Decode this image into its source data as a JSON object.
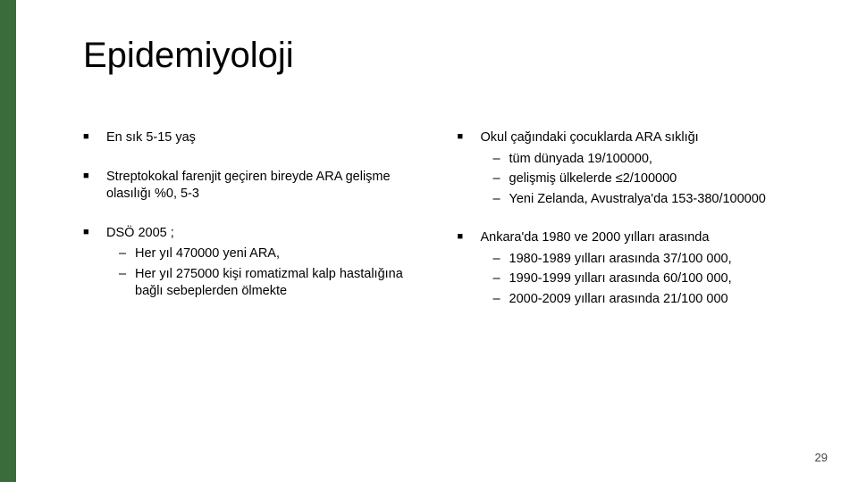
{
  "accent_color": "#3a6b3a",
  "title": "Epidemiyoloji",
  "page_number": "29",
  "left_column": [
    {
      "text": "En sık 5-15 yaş",
      "sub": []
    },
    {
      "text": "Streptokokal farenjit geçiren bireyde ARA gelişme olasılığı %0, 5-3",
      "sub": []
    },
    {
      "text": "DSÖ 2005 ;",
      "sub": [
        "Her yıl 470000 yeni ARA,",
        "Her yıl 275000 kişi romatizmal kalp hastalığına bağlı sebeplerden ölmekte"
      ]
    }
  ],
  "right_column": [
    {
      "text": "Okul çağındaki çocuklarda ARA sıklığı",
      "sub": [
        "tüm dünyada 19/100000,",
        "gelişmiş ülkelerde ≤2/100000",
        "Yeni Zelanda, Avustralya'da 153-380/100000"
      ]
    },
    {
      "text": "Ankara'da 1980 ve 2000 yılları arasında",
      "sub": [
        "1980-1989 yılları arasında 37/100 000,",
        "1990-1999 yılları arasında 60/100 000,",
        "2000-2009 yılları arasında 21/100 000"
      ]
    }
  ]
}
